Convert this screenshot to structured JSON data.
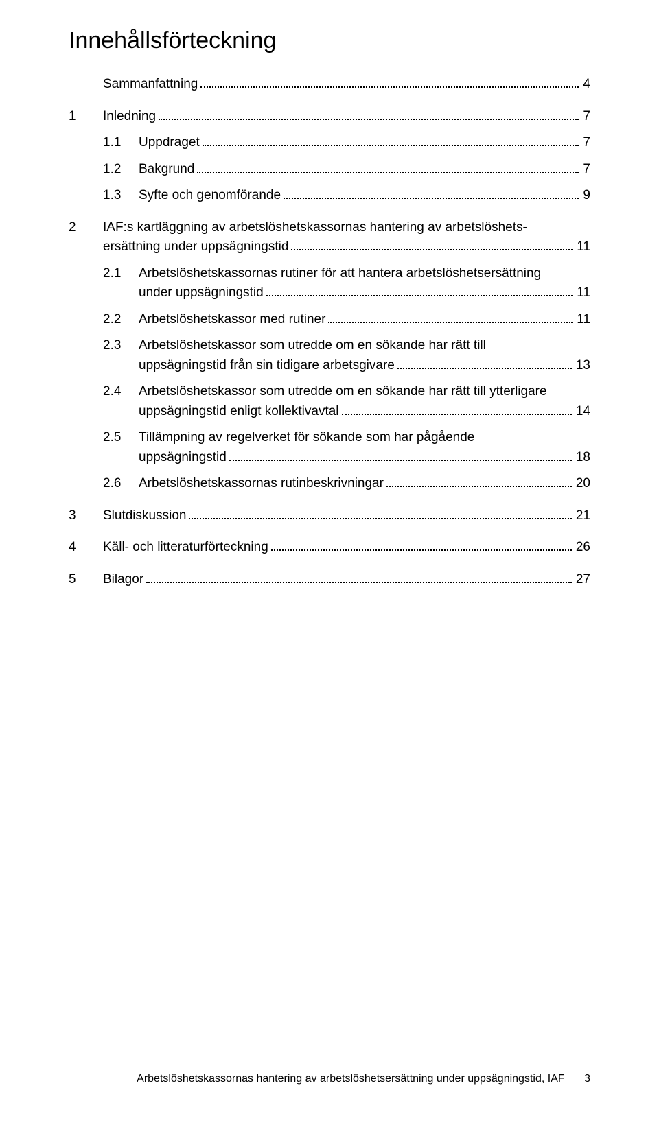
{
  "title": "Innehållsförteckning",
  "entries": [
    {
      "type": "top",
      "num": "",
      "label": "Sammanfattning",
      "page": "4",
      "spacedBefore": false
    },
    {
      "type": "top",
      "num": "1",
      "label": "Inledning",
      "page": "7",
      "spacedBefore": true
    },
    {
      "type": "sub",
      "num": "1.1",
      "label": "Uppdraget",
      "page": "7",
      "spacedBefore": false
    },
    {
      "type": "sub",
      "num": "1.2",
      "label": "Bakgrund",
      "page": "7",
      "spacedBefore": false
    },
    {
      "type": "sub",
      "num": "1.3",
      "label": "Syfte och genomförande",
      "page": "9",
      "spacedBefore": false
    },
    {
      "type": "top-multi",
      "num": "2",
      "lines": [
        "IAF:s kartläggning av arbetslöshetskassornas hantering av arbetslöshets-",
        "ersättning under uppsägningstid"
      ],
      "page": "11",
      "spacedBefore": true
    },
    {
      "type": "sub-multi",
      "num": "2.1",
      "lines": [
        "Arbetslöshetskassornas rutiner för att hantera arbetslöshetsersättning",
        "under uppsägningstid"
      ],
      "page": "11",
      "spacedBefore": false
    },
    {
      "type": "sub",
      "num": "2.2",
      "label": "Arbetslöshetskassor med rutiner",
      "page": "11",
      "spacedBefore": false
    },
    {
      "type": "sub-multi",
      "num": "2.3",
      "lines": [
        "Arbetslöshetskassor som utredde om en sökande har rätt till",
        "uppsägningstid från sin tidigare arbetsgivare"
      ],
      "page": "13",
      "spacedBefore": false
    },
    {
      "type": "sub-multi",
      "num": "2.4",
      "lines": [
        "Arbetslöshetskassor som utredde om en sökande har rätt till ytterligare",
        "uppsägningstid enligt kollektivavtal"
      ],
      "page": "14",
      "spacedBefore": false
    },
    {
      "type": "sub-multi",
      "num": "2.5",
      "lines": [
        "Tillämpning av regelverket för sökande som har pågående",
        "uppsägningstid"
      ],
      "page": "18",
      "spacedBefore": false
    },
    {
      "type": "sub",
      "num": "2.6",
      "label": "Arbetslöshetskassornas rutinbeskrivningar",
      "page": "20",
      "spacedBefore": false
    },
    {
      "type": "top",
      "num": "3",
      "label": "Slutdiskussion",
      "page": "21",
      "spacedBefore": true
    },
    {
      "type": "top",
      "num": "4",
      "label": "Käll- och litteraturförteckning",
      "page": "26",
      "spacedBefore": true
    },
    {
      "type": "top",
      "num": "5",
      "label": "Bilagor",
      "page": "27",
      "spacedBefore": true
    }
  ],
  "footer": {
    "text": "Arbetslöshetskassornas hantering av arbetslöshetsersättning under uppsägningstid, IAF",
    "page_number": "3"
  }
}
